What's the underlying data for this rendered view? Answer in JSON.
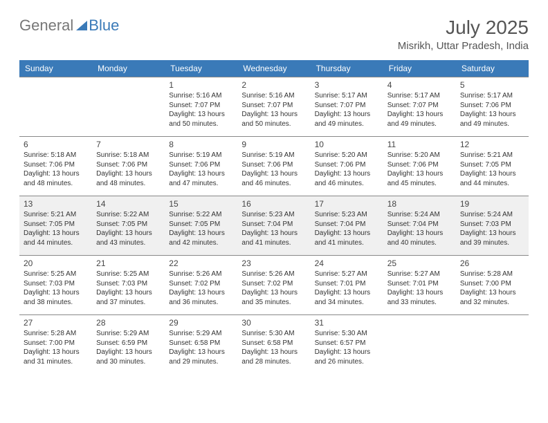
{
  "logo": {
    "general": "General",
    "blue": "Blue"
  },
  "title": "July 2025",
  "location": "Misrikh, Uttar Pradesh, India",
  "headers": [
    "Sunday",
    "Monday",
    "Tuesday",
    "Wednesday",
    "Thursday",
    "Friday",
    "Saturday"
  ],
  "colors": {
    "header_bg": "#3a7ab8",
    "border": "#888888",
    "shade": "#f0f0f0"
  },
  "weeks": [
    [
      null,
      null,
      {
        "day": "1",
        "sunrise": "Sunrise: 5:16 AM",
        "sunset": "Sunset: 7:07 PM",
        "daylight": "Daylight: 13 hours and 50 minutes."
      },
      {
        "day": "2",
        "sunrise": "Sunrise: 5:16 AM",
        "sunset": "Sunset: 7:07 PM",
        "daylight": "Daylight: 13 hours and 50 minutes."
      },
      {
        "day": "3",
        "sunrise": "Sunrise: 5:17 AM",
        "sunset": "Sunset: 7:07 PM",
        "daylight": "Daylight: 13 hours and 49 minutes."
      },
      {
        "day": "4",
        "sunrise": "Sunrise: 5:17 AM",
        "sunset": "Sunset: 7:07 PM",
        "daylight": "Daylight: 13 hours and 49 minutes."
      },
      {
        "day": "5",
        "sunrise": "Sunrise: 5:17 AM",
        "sunset": "Sunset: 7:06 PM",
        "daylight": "Daylight: 13 hours and 49 minutes."
      }
    ],
    [
      {
        "day": "6",
        "sunrise": "Sunrise: 5:18 AM",
        "sunset": "Sunset: 7:06 PM",
        "daylight": "Daylight: 13 hours and 48 minutes."
      },
      {
        "day": "7",
        "sunrise": "Sunrise: 5:18 AM",
        "sunset": "Sunset: 7:06 PM",
        "daylight": "Daylight: 13 hours and 48 minutes."
      },
      {
        "day": "8",
        "sunrise": "Sunrise: 5:19 AM",
        "sunset": "Sunset: 7:06 PM",
        "daylight": "Daylight: 13 hours and 47 minutes."
      },
      {
        "day": "9",
        "sunrise": "Sunrise: 5:19 AM",
        "sunset": "Sunset: 7:06 PM",
        "daylight": "Daylight: 13 hours and 46 minutes."
      },
      {
        "day": "10",
        "sunrise": "Sunrise: 5:20 AM",
        "sunset": "Sunset: 7:06 PM",
        "daylight": "Daylight: 13 hours and 46 minutes."
      },
      {
        "day": "11",
        "sunrise": "Sunrise: 5:20 AM",
        "sunset": "Sunset: 7:06 PM",
        "daylight": "Daylight: 13 hours and 45 minutes."
      },
      {
        "day": "12",
        "sunrise": "Sunrise: 5:21 AM",
        "sunset": "Sunset: 7:05 PM",
        "daylight": "Daylight: 13 hours and 44 minutes."
      }
    ],
    [
      {
        "day": "13",
        "sunrise": "Sunrise: 5:21 AM",
        "sunset": "Sunset: 7:05 PM",
        "daylight": "Daylight: 13 hours and 44 minutes."
      },
      {
        "day": "14",
        "sunrise": "Sunrise: 5:22 AM",
        "sunset": "Sunset: 7:05 PM",
        "daylight": "Daylight: 13 hours and 43 minutes."
      },
      {
        "day": "15",
        "sunrise": "Sunrise: 5:22 AM",
        "sunset": "Sunset: 7:05 PM",
        "daylight": "Daylight: 13 hours and 42 minutes."
      },
      {
        "day": "16",
        "sunrise": "Sunrise: 5:23 AM",
        "sunset": "Sunset: 7:04 PM",
        "daylight": "Daylight: 13 hours and 41 minutes."
      },
      {
        "day": "17",
        "sunrise": "Sunrise: 5:23 AM",
        "sunset": "Sunset: 7:04 PM",
        "daylight": "Daylight: 13 hours and 41 minutes."
      },
      {
        "day": "18",
        "sunrise": "Sunrise: 5:24 AM",
        "sunset": "Sunset: 7:04 PM",
        "daylight": "Daylight: 13 hours and 40 minutes."
      },
      {
        "day": "19",
        "sunrise": "Sunrise: 5:24 AM",
        "sunset": "Sunset: 7:03 PM",
        "daylight": "Daylight: 13 hours and 39 minutes."
      }
    ],
    [
      {
        "day": "20",
        "sunrise": "Sunrise: 5:25 AM",
        "sunset": "Sunset: 7:03 PM",
        "daylight": "Daylight: 13 hours and 38 minutes."
      },
      {
        "day": "21",
        "sunrise": "Sunrise: 5:25 AM",
        "sunset": "Sunset: 7:03 PM",
        "daylight": "Daylight: 13 hours and 37 minutes."
      },
      {
        "day": "22",
        "sunrise": "Sunrise: 5:26 AM",
        "sunset": "Sunset: 7:02 PM",
        "daylight": "Daylight: 13 hours and 36 minutes."
      },
      {
        "day": "23",
        "sunrise": "Sunrise: 5:26 AM",
        "sunset": "Sunset: 7:02 PM",
        "daylight": "Daylight: 13 hours and 35 minutes."
      },
      {
        "day": "24",
        "sunrise": "Sunrise: 5:27 AM",
        "sunset": "Sunset: 7:01 PM",
        "daylight": "Daylight: 13 hours and 34 minutes."
      },
      {
        "day": "25",
        "sunrise": "Sunrise: 5:27 AM",
        "sunset": "Sunset: 7:01 PM",
        "daylight": "Daylight: 13 hours and 33 minutes."
      },
      {
        "day": "26",
        "sunrise": "Sunrise: 5:28 AM",
        "sunset": "Sunset: 7:00 PM",
        "daylight": "Daylight: 13 hours and 32 minutes."
      }
    ],
    [
      {
        "day": "27",
        "sunrise": "Sunrise: 5:28 AM",
        "sunset": "Sunset: 7:00 PM",
        "daylight": "Daylight: 13 hours and 31 minutes."
      },
      {
        "day": "28",
        "sunrise": "Sunrise: 5:29 AM",
        "sunset": "Sunset: 6:59 PM",
        "daylight": "Daylight: 13 hours and 30 minutes."
      },
      {
        "day": "29",
        "sunrise": "Sunrise: 5:29 AM",
        "sunset": "Sunset: 6:58 PM",
        "daylight": "Daylight: 13 hours and 29 minutes."
      },
      {
        "day": "30",
        "sunrise": "Sunrise: 5:30 AM",
        "sunset": "Sunset: 6:58 PM",
        "daylight": "Daylight: 13 hours and 28 minutes."
      },
      {
        "day": "31",
        "sunrise": "Sunrise: 5:30 AM",
        "sunset": "Sunset: 6:57 PM",
        "daylight": "Daylight: 13 hours and 26 minutes."
      },
      null,
      null
    ]
  ],
  "shaded_week": 2
}
